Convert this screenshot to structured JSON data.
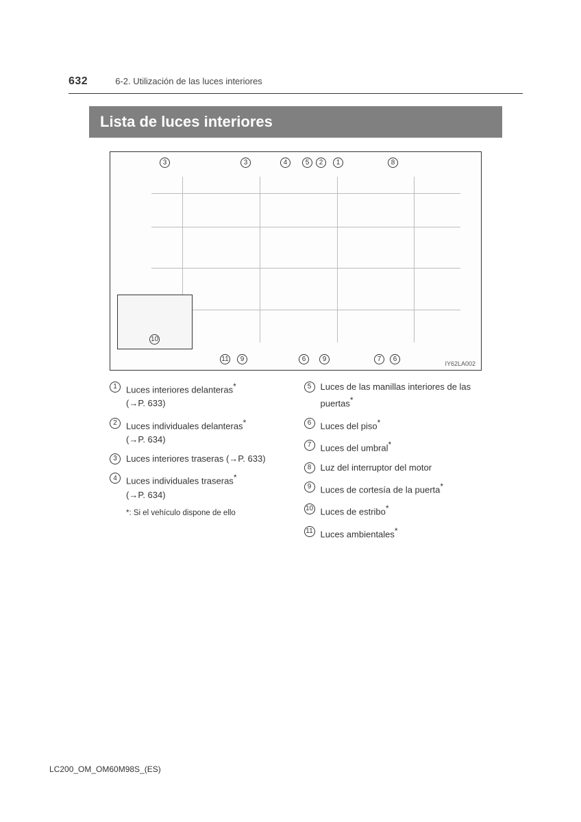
{
  "page_number": "632",
  "section_label": "6-2. Utilización de las luces interiores",
  "title": "Lista de luces interiores",
  "diagram_code": "IY62LA002",
  "callouts_top": [
    "3",
    "3",
    "4",
    "5",
    "2",
    "1",
    "8"
  ],
  "callouts_bottom": [
    "11",
    "9",
    "6",
    "9",
    "7",
    "6"
  ],
  "inset_callout": "10",
  "legend_left": [
    {
      "n": "1",
      "text": "Luces interiores delanteras",
      "star": true,
      "ref": "(→P. 633)"
    },
    {
      "n": "2",
      "text": "Luces individuales delanteras",
      "star": true,
      "ref": "(→P. 634)"
    },
    {
      "n": "3",
      "text": "Luces interiores traseras (→P. 633)",
      "star": false,
      "ref": ""
    },
    {
      "n": "4",
      "text": "Luces individuales traseras",
      "star": true,
      "ref": "(→P. 634)"
    }
  ],
  "footnote": "*: Si el vehículo dispone de ello",
  "legend_right": [
    {
      "n": "5",
      "text": "Luces de las manillas interiores de las puertas",
      "star": true
    },
    {
      "n": "6",
      "text": "Luces del piso",
      "star": true
    },
    {
      "n": "7",
      "text": "Luces del umbral",
      "star": true
    },
    {
      "n": "8",
      "text": "Luz del interruptor del motor",
      "star": false
    },
    {
      "n": "9",
      "text": "Luces de cortesía de la puerta",
      "star": true
    },
    {
      "n": "10",
      "text": "Luces de estribo",
      "star": true
    },
    {
      "n": "11",
      "text": "Luces ambientales",
      "star": true
    }
  ],
  "doc_code": "LC200_OM_OM60M98S_(ES)"
}
